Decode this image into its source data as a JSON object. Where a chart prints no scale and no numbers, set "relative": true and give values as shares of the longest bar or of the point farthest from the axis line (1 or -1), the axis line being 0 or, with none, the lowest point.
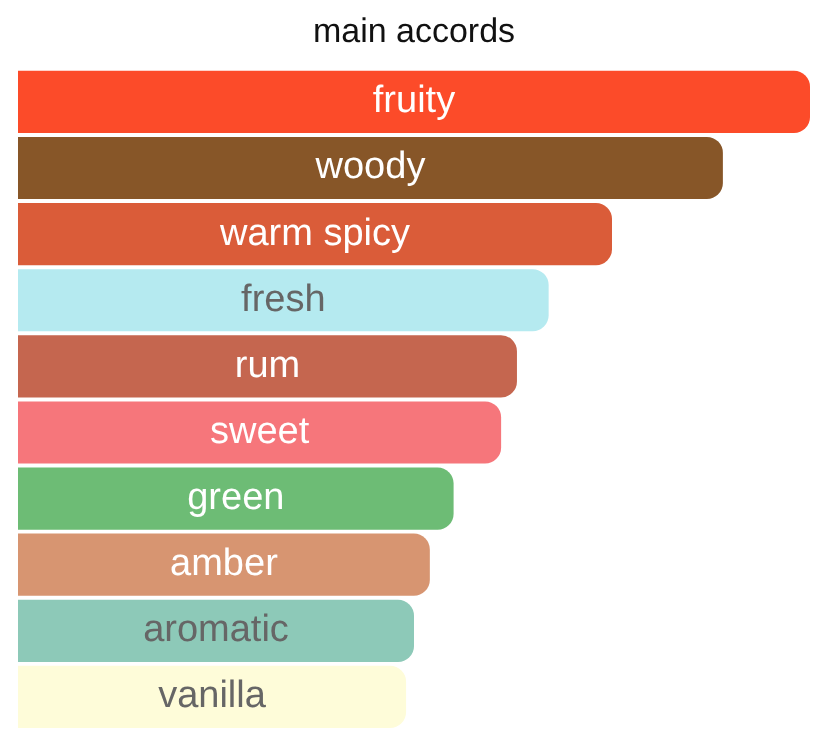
{
  "chart_data": {
    "type": "bar",
    "title": "main accords",
    "orientation": "horizontal",
    "relative": true,
    "categories": [
      "fruity",
      "woody",
      "warm spicy",
      "fresh",
      "rum",
      "sweet",
      "green",
      "amber",
      "aromatic",
      "vanilla"
    ],
    "values": [
      1,
      0.89,
      0.75,
      0.67,
      0.63,
      0.61,
      0.55,
      0.52,
      0.5,
      0.49
    ],
    "colors": [
      "#fc4b29",
      "#875628",
      "#da5c39",
      "#b5eaf0",
      "#c5664f",
      "#f6767b",
      "#6dbc75",
      "#d79571",
      "#8dc9b8",
      "#fefcd9"
    ],
    "legend": false
  }
}
